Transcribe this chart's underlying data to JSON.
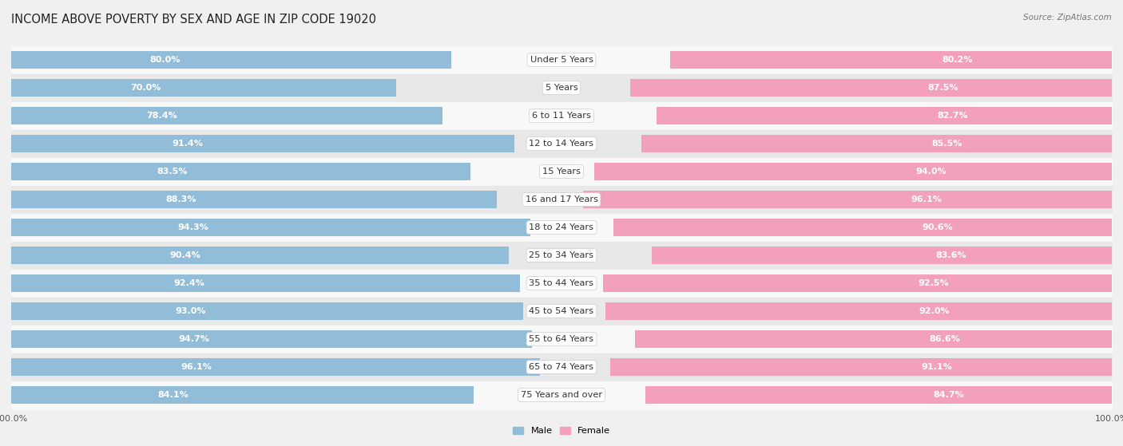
{
  "title": "INCOME ABOVE POVERTY BY SEX AND AGE IN ZIP CODE 19020",
  "source": "Source: ZipAtlas.com",
  "categories": [
    "Under 5 Years",
    "5 Years",
    "6 to 11 Years",
    "12 to 14 Years",
    "15 Years",
    "16 and 17 Years",
    "18 to 24 Years",
    "25 to 34 Years",
    "35 to 44 Years",
    "45 to 54 Years",
    "55 to 64 Years",
    "65 to 74 Years",
    "75 Years and over"
  ],
  "male_values": [
    80.0,
    70.0,
    78.4,
    91.4,
    83.5,
    88.3,
    94.3,
    90.4,
    92.4,
    93.0,
    94.7,
    96.1,
    84.1
  ],
  "female_values": [
    80.2,
    87.5,
    82.7,
    85.5,
    94.0,
    96.1,
    90.6,
    83.6,
    92.5,
    92.0,
    86.6,
    91.1,
    84.7
  ],
  "male_color": "#92bdd8",
  "female_color": "#f2a0bc",
  "bg_color": "#f0f0f0",
  "row_bg_even": "#f8f8f8",
  "row_bg_odd": "#e8e8e8",
  "bar_height": 0.62,
  "max_value": 100.0,
  "title_fontsize": 10.5,
  "label_fontsize": 8.2,
  "value_fontsize": 8.0,
  "tick_fontsize": 8,
  "source_fontsize": 7.5
}
